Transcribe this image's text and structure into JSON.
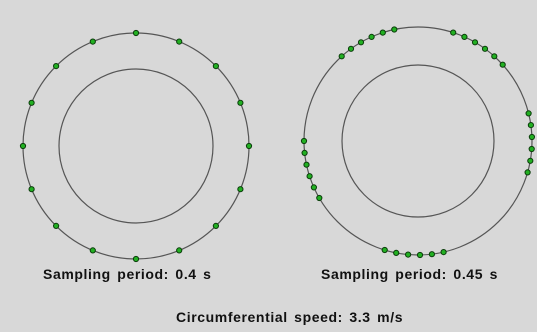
{
  "colors": {
    "background": "#d8d8d8",
    "circle_stroke": "#555555",
    "marker_fill": "#22b022",
    "marker_stroke": "#0b3d0b",
    "text": "#111111"
  },
  "panels": [
    {
      "id": "left",
      "caption": "Sampling period: 0.4 s",
      "sample_angles_deg": [
        -90,
        -67.5,
        -45,
        -22.5,
        0,
        22.5,
        45,
        67.5,
        90,
        112.5,
        135,
        157.5,
        180,
        202.5,
        225,
        247.5
      ]
    },
    {
      "id": "right",
      "caption": "Sampling period: 0.45 s",
      "sample_angles_deg": [
        -72,
        -66,
        -60,
        -54,
        -48,
        -42,
        -14,
        -8,
        -2,
        4,
        10,
        16,
        77,
        83,
        89,
        95,
        101,
        107,
        150,
        156,
        162,
        168,
        174,
        180,
        228,
        234,
        240,
        246,
        252,
        258
      ]
    }
  ],
  "footer": {
    "text": "Circumferential speed: 3.3 m/s"
  }
}
